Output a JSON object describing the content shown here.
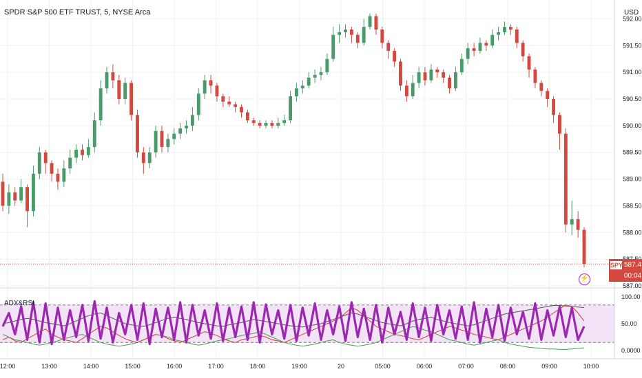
{
  "header": {
    "title": "SPDR S&P 500 ETF TRUST, 5, NYSE Arca",
    "currency": "USD"
  },
  "indicator": {
    "title": "ADX&RSI"
  },
  "price_tag": {
    "symbol": "SPY",
    "price": "587.41",
    "countdown": "00:04"
  },
  "colors": {
    "up": "#4a9a6a",
    "down": "#d4493f",
    "grid": "#eef0f3",
    "axis_text": "#131722",
    "purple": "#9c27b0",
    "rsi_band": "#f3e3f6"
  },
  "chart_data": [
    {
      "type": "candlestick",
      "title": "SPDR S&P 500 ETF TRUST, 5, NYSE Arca",
      "ylim": [
        587.0,
        592.25
      ],
      "y_ticks": [
        "587.00",
        "587.50",
        "588.00",
        "588.50",
        "589.00",
        "589.50",
        "590.00",
        "590.50",
        "591.00",
        "591.50",
        "592.00"
      ],
      "x_ticks": [
        "12:00",
        "13:00",
        "14:00",
        "15:00",
        "16:00",
        "17:00",
        "18:00",
        "19:00",
        "20",
        "05:00",
        "06:00",
        "07:00",
        "08:00",
        "09:00",
        "10:00"
      ],
      "last_price": 587.41,
      "candles": [
        [
          588.95,
          588.5,
          589.1,
          588.4
        ],
        [
          588.5,
          588.75,
          588.9,
          588.35
        ],
        [
          588.75,
          588.6,
          588.85,
          588.5
        ],
        [
          588.6,
          588.85,
          589.0,
          588.55
        ],
        [
          588.85,
          588.4,
          588.9,
          588.1
        ],
        [
          588.4,
          589.1,
          589.25,
          588.3
        ],
        [
          589.1,
          589.5,
          589.6,
          589.0
        ],
        [
          589.5,
          589.3,
          589.55,
          589.1
        ],
        [
          589.3,
          589.1,
          589.35,
          588.95
        ],
        [
          589.1,
          588.95,
          589.2,
          588.8
        ],
        [
          588.95,
          589.2,
          589.35,
          588.85
        ],
        [
          589.2,
          589.4,
          589.55,
          589.1
        ],
        [
          589.4,
          589.55,
          589.65,
          589.3
        ],
        [
          589.55,
          589.45,
          589.65,
          589.35
        ],
        [
          589.45,
          589.6,
          589.75,
          589.4
        ],
        [
          589.6,
          590.1,
          590.25,
          589.5
        ],
        [
          590.1,
          590.7,
          590.85,
          590.0
        ],
        [
          590.7,
          591.0,
          591.1,
          590.6
        ],
        [
          591.0,
          590.85,
          591.15,
          590.7
        ],
        [
          590.85,
          590.5,
          590.95,
          590.4
        ],
        [
          590.5,
          590.8,
          590.9,
          590.4
        ],
        [
          590.8,
          590.2,
          590.85,
          590.1
        ],
        [
          590.2,
          589.5,
          590.3,
          589.4
        ],
        [
          589.5,
          589.3,
          589.6,
          589.1
        ],
        [
          589.3,
          589.5,
          589.6,
          589.2
        ],
        [
          589.5,
          589.9,
          590.0,
          589.4
        ],
        [
          589.9,
          589.6,
          590.0,
          589.5
        ],
        [
          589.6,
          589.75,
          589.85,
          589.5
        ],
        [
          589.75,
          589.85,
          589.95,
          589.65
        ],
        [
          589.85,
          589.95,
          590.05,
          589.75
        ],
        [
          589.95,
          590.0,
          590.1,
          589.85
        ],
        [
          590.0,
          590.2,
          590.35,
          589.9
        ],
        [
          590.2,
          590.6,
          590.7,
          590.1
        ],
        [
          590.6,
          590.85,
          590.95,
          590.5
        ],
        [
          590.85,
          590.75,
          590.95,
          590.6
        ],
        [
          590.75,
          590.55,
          590.8,
          590.45
        ],
        [
          590.55,
          590.45,
          590.6,
          590.35
        ],
        [
          590.45,
          590.4,
          590.55,
          590.35
        ],
        [
          590.4,
          590.35,
          590.45,
          590.25
        ],
        [
          590.35,
          590.25,
          590.4,
          590.15
        ],
        [
          590.25,
          590.1,
          590.3,
          590.05
        ],
        [
          590.1,
          590.05,
          590.15,
          590.0
        ],
        [
          590.05,
          590.0,
          590.1,
          589.95
        ],
        [
          590.0,
          590.05,
          590.1,
          589.95
        ],
        [
          590.05,
          590.0,
          590.1,
          589.95
        ],
        [
          590.0,
          590.05,
          590.15,
          589.95
        ],
        [
          590.05,
          590.1,
          590.2,
          590.0
        ],
        [
          590.1,
          590.55,
          590.65,
          590.05
        ],
        [
          590.55,
          590.7,
          590.8,
          590.45
        ],
        [
          590.7,
          590.75,
          590.85,
          590.6
        ],
        [
          590.75,
          590.9,
          591.0,
          590.7
        ],
        [
          590.9,
          590.95,
          591.05,
          590.8
        ],
        [
          590.95,
          591.0,
          591.1,
          590.85
        ],
        [
          591.0,
          591.25,
          591.35,
          590.95
        ],
        [
          591.25,
          591.7,
          591.85,
          591.2
        ],
        [
          591.7,
          591.75,
          591.9,
          591.55
        ],
        [
          591.75,
          591.8,
          591.9,
          591.65
        ],
        [
          591.8,
          591.7,
          591.85,
          591.55
        ],
        [
          591.7,
          591.55,
          591.75,
          591.45
        ],
        [
          591.55,
          591.85,
          592.0,
          591.5
        ],
        [
          591.85,
          592.05,
          592.1,
          591.8
        ],
        [
          592.05,
          591.8,
          592.1,
          591.7
        ],
        [
          591.8,
          591.55,
          591.85,
          591.45
        ],
        [
          591.55,
          591.4,
          591.6,
          591.25
        ],
        [
          591.4,
          591.2,
          591.45,
          591.1
        ],
        [
          591.2,
          590.75,
          591.25,
          590.65
        ],
        [
          590.75,
          590.55,
          590.85,
          590.45
        ],
        [
          590.55,
          590.8,
          590.95,
          590.5
        ],
        [
          590.8,
          591.0,
          591.1,
          590.7
        ],
        [
          591.0,
          590.85,
          591.1,
          590.75
        ],
        [
          590.85,
          591.05,
          591.15,
          590.8
        ],
        [
          591.05,
          591.0,
          591.1,
          590.9
        ],
        [
          591.0,
          590.9,
          591.05,
          590.8
        ],
        [
          590.9,
          590.7,
          590.95,
          590.6
        ],
        [
          590.7,
          591.0,
          591.1,
          590.65
        ],
        [
          591.0,
          591.25,
          591.35,
          590.95
        ],
        [
          591.25,
          591.45,
          591.55,
          591.15
        ],
        [
          591.45,
          591.4,
          591.55,
          591.3
        ],
        [
          591.4,
          591.55,
          591.65,
          591.35
        ],
        [
          591.55,
          591.5,
          591.6,
          591.4
        ],
        [
          591.5,
          591.7,
          591.8,
          591.45
        ],
        [
          591.7,
          591.75,
          591.85,
          591.6
        ],
        [
          591.75,
          591.85,
          591.95,
          591.7
        ],
        [
          591.85,
          591.8,
          591.9,
          591.7
        ],
        [
          591.8,
          591.55,
          591.85,
          591.45
        ],
        [
          591.55,
          591.3,
          591.6,
          591.2
        ],
        [
          591.3,
          591.05,
          591.35,
          590.9
        ],
        [
          591.05,
          590.8,
          591.1,
          590.7
        ],
        [
          590.8,
          590.65,
          590.85,
          590.55
        ],
        [
          590.65,
          590.5,
          590.7,
          590.35
        ],
        [
          590.5,
          590.2,
          590.55,
          590.05
        ],
        [
          590.2,
          589.85,
          590.25,
          589.55
        ],
        [
          589.85,
          588.15,
          589.95,
          588.0
        ],
        [
          588.15,
          588.25,
          588.6,
          587.95
        ],
        [
          588.25,
          588.05,
          588.4,
          587.9
        ],
        [
          588.05,
          587.41,
          588.1,
          587.35
        ]
      ]
    },
    {
      "type": "line",
      "title": "ADX&RSI",
      "ylim": [
        0,
        100
      ],
      "y_ticks": [
        "0.0000",
        "50.00",
        "100.00"
      ],
      "bands": [
        15,
        85
      ],
      "series": [
        {
          "name": "",
          "color": "#9c27b0",
          "values": [
            45,
            70,
            30,
            82,
            20,
            90,
            15,
            88,
            12,
            80,
            20,
            75,
            25,
            85,
            18,
            92,
            22,
            80,
            15,
            70,
            30,
            85,
            20,
            88,
            12,
            78,
            25,
            80,
            20,
            90,
            15,
            85,
            28,
            75,
            22,
            88,
            18,
            80,
            25,
            82,
            20,
            90,
            15,
            86,
            30,
            75,
            22,
            85,
            18,
            80,
            28,
            88,
            20,
            75,
            30,
            82,
            18,
            90,
            25,
            78,
            20,
            85,
            15,
            80,
            30,
            72,
            20,
            88,
            25,
            80,
            18,
            85,
            30,
            75,
            22,
            82,
            20,
            90,
            15,
            78,
            25,
            85,
            18,
            80,
            30,
            72,
            22,
            88,
            20,
            75,
            28,
            82,
            25,
            80,
            20,
            45
          ]
        },
        {
          "name": "",
          "color": "#d63a3a",
          "values": [
            20,
            25,
            18,
            15,
            22,
            28,
            35,
            40,
            30,
            25,
            20,
            18,
            15,
            22,
            30,
            38,
            45,
            42,
            35,
            28,
            22,
            18,
            15,
            20,
            25,
            30,
            28,
            22,
            18,
            15,
            20,
            25,
            30,
            35,
            32,
            28,
            22,
            18,
            15,
            20,
            22,
            25,
            28,
            25,
            20,
            18,
            15,
            20,
            25,
            30,
            35,
            40,
            45,
            50,
            55,
            60,
            70,
            80,
            75,
            65,
            55,
            45,
            40,
            35,
            30,
            28,
            25,
            22,
            20,
            25,
            30,
            35,
            40,
            45,
            42,
            38,
            35,
            30,
            28,
            25,
            22,
            20,
            25,
            30,
            35,
            40,
            45,
            50,
            55,
            62,
            70,
            78,
            85,
            82,
            70,
            55
          ]
        },
        {
          "name": "",
          "color": "#43a047",
          "values": [
            30,
            25,
            20,
            18,
            15,
            12,
            10,
            12,
            15,
            18,
            22,
            25,
            28,
            30,
            25,
            20,
            15,
            12,
            10,
            8,
            10,
            12,
            15,
            20,
            25,
            30,
            28,
            25,
            20,
            18,
            15,
            12,
            10,
            12,
            15,
            18,
            20,
            22,
            25,
            28,
            30,
            32,
            35,
            30,
            25,
            20,
            15,
            12,
            10,
            8,
            10,
            12,
            15,
            18,
            20,
            15,
            12,
            10,
            8,
            10,
            12,
            15,
            20,
            25,
            30,
            35,
            40,
            45,
            42,
            38,
            35,
            30,
            25,
            20,
            18,
            15,
            12,
            10,
            12,
            15,
            18,
            20,
            15,
            12,
            10,
            8,
            6,
            5,
            4,
            3,
            3,
            2,
            2,
            3,
            4,
            5
          ]
        },
        {
          "name": "",
          "color": "#555555",
          "values": [
            50,
            52,
            55,
            58,
            60,
            58,
            55,
            52,
            50,
            48,
            46,
            50,
            55,
            60,
            65,
            68,
            70,
            65,
            60,
            55,
            50,
            48,
            46,
            45,
            48,
            52,
            56,
            60,
            62,
            60,
            58,
            55,
            52,
            50,
            48,
            46,
            45,
            48,
            50,
            52,
            55,
            58,
            56,
            54,
            52,
            50,
            48,
            46,
            45,
            44,
            46,
            48,
            50,
            54,
            58,
            62,
            66,
            70,
            68,
            64,
            60,
            56,
            52,
            50,
            48,
            46,
            50,
            55,
            58,
            60,
            62,
            58,
            55,
            52,
            50,
            48,
            46,
            48,
            52,
            56,
            60,
            64,
            68,
            70,
            72,
            74,
            76,
            78,
            80,
            82,
            84,
            84,
            83,
            82,
            81,
            80
          ]
        }
      ]
    }
  ]
}
